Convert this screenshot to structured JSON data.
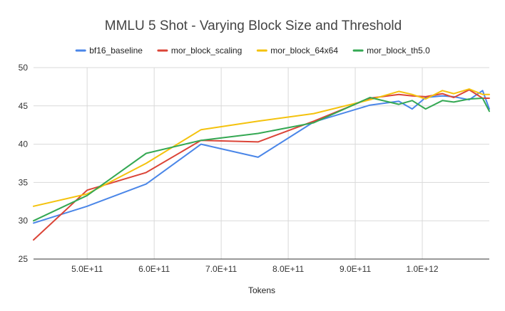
{
  "chart_data": {
    "type": "line",
    "title": "MMLU 5 Shot - Varying Block Size and Threshold",
    "xlabel": "Tokens",
    "ylabel": "",
    "xlim": [
      420000000000,
      1100000000000
    ],
    "ylim": [
      25,
      50
    ],
    "yticks": [
      25,
      30,
      35,
      40,
      45,
      50
    ],
    "xticks": [
      {
        "value": 500000000000,
        "label": "5.0E+11"
      },
      {
        "value": 600000000000,
        "label": "6.0E+11"
      },
      {
        "value": 700000000000,
        "label": "7.0E+11"
      },
      {
        "value": 800000000000,
        "label": "8.0E+11"
      },
      {
        "value": 900000000000,
        "label": "9.0E+11"
      },
      {
        "value": 1000000000000,
        "label": "1.0E+12"
      }
    ],
    "grid": true,
    "legend_position": "top",
    "series": [
      {
        "name": "bf16_baseline",
        "color": "#4a86e8",
        "x": [
          420000000000,
          500000000000,
          588000000000,
          670000000000,
          755000000000,
          838000000000,
          922000000000,
          965000000000,
          985000000000,
          1005000000000,
          1030000000000,
          1047000000000,
          1070000000000,
          1090000000000,
          1100000000000
        ],
        "y": [
          29.7,
          31.9,
          34.8,
          40.0,
          38.3,
          42.9,
          45.1,
          45.6,
          44.6,
          46.1,
          46.3,
          46.2,
          45.8,
          47.0,
          44.6
        ]
      },
      {
        "name": "mor_block_scaling",
        "color": "#db4437",
        "x": [
          420000000000,
          500000000000,
          588000000000,
          670000000000,
          755000000000,
          838000000000,
          922000000000,
          965000000000,
          985000000000,
          1005000000000,
          1030000000000,
          1047000000000,
          1070000000000,
          1090000000000,
          1100000000000
        ],
        "y": [
          27.5,
          34.0,
          36.3,
          40.5,
          40.3,
          43.0,
          46.0,
          46.5,
          46.3,
          46.2,
          46.6,
          46.1,
          47.1,
          46.0,
          46.0
        ]
      },
      {
        "name": "mor_block_64x64",
        "color": "#f4c20d",
        "x": [
          420000000000,
          500000000000,
          588000000000,
          670000000000,
          755000000000,
          838000000000,
          922000000000,
          965000000000,
          985000000000,
          1005000000000,
          1030000000000,
          1047000000000,
          1070000000000,
          1090000000000,
          1100000000000
        ],
        "y": [
          31.9,
          33.5,
          37.5,
          41.9,
          43.0,
          44.0,
          45.8,
          46.9,
          46.5,
          45.9,
          47.0,
          46.6,
          47.2,
          46.5,
          46.5
        ]
      },
      {
        "name": "mor_block_th5.0",
        "color": "#34a853",
        "x": [
          420000000000,
          500000000000,
          588000000000,
          670000000000,
          755000000000,
          838000000000,
          922000000000,
          965000000000,
          985000000000,
          1005000000000,
          1030000000000,
          1047000000000,
          1070000000000,
          1090000000000,
          1100000000000
        ],
        "y": [
          30.0,
          33.3,
          38.8,
          40.5,
          41.4,
          42.8,
          46.1,
          45.2,
          45.7,
          44.6,
          45.7,
          45.5,
          45.9,
          46.0,
          44.3
        ]
      }
    ]
  }
}
